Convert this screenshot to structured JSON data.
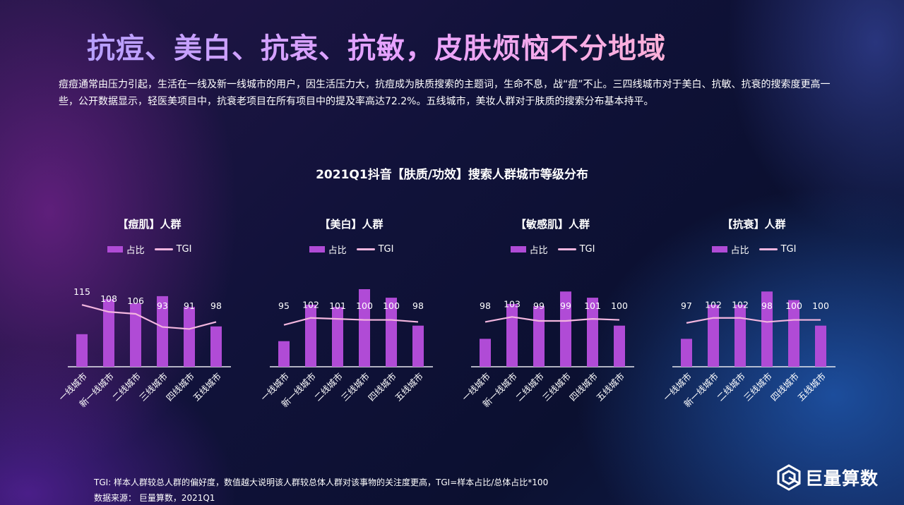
{
  "page": {
    "title": "抗痘、美白、抗衰、抗敏，皮肤烦恼不分地域",
    "intro": "痘痘通常由压力引起，生活在一线及新一线城市的用户，因生活压力大，抗痘成为肤质搜索的主题词，生命不息，战“痘”不止。三四线城市对于美白、抗敏、抗衰的搜索度更高一些，公开数据显示，轻医美项目中，抗衰老项目在所有项目中的提及率高达72.2%。五线城市，美妆人群对于肤质的搜索分布基本持平。",
    "chart_title": "2021Q1抖音【肤质/功效】搜索人群城市等级分布",
    "footer_note": "TGI: 样本人群较总人群的偏好度，数值越大说明该人群较总体人群对该事物的关注度更高，TGI=样本占比/总体占比*100",
    "footer_source": "数据来源： 巨量算数，2021Q1",
    "brand": "巨量算数"
  },
  "legend": {
    "bar": "占比",
    "line": "TGI"
  },
  "colors": {
    "bar": "#b04bd6",
    "line": "#f3b6df",
    "axis": "#e8e8f0"
  },
  "chart_data": [
    {
      "type": "bar",
      "title": "【痘肌】人群",
      "categories": [
        "一线城市",
        "新一线城市",
        "二线城市",
        "三线城市",
        "四线城市",
        "五线城市"
      ],
      "series": [
        {
          "name": "占比",
          "type": "bar",
          "values": [
            0.42,
            0.87,
            0.82,
            0.91,
            0.77,
            0.52
          ]
        },
        {
          "name": "TGI",
          "type": "line",
          "values": [
            115,
            108,
            106,
            93,
            91,
            98
          ]
        }
      ]
    },
    {
      "type": "bar",
      "title": "【美白】人群",
      "categories": [
        "一线城市",
        "新一线城市",
        "二线城市",
        "三线城市",
        "四线城市",
        "五线城市"
      ],
      "series": [
        {
          "name": "占比",
          "type": "bar",
          "values": [
            0.33,
            0.8,
            0.77,
            1.0,
            0.89,
            0.53
          ]
        },
        {
          "name": "TGI",
          "type": "line",
          "values": [
            95,
            102,
            101,
            100,
            100,
            98
          ]
        }
      ]
    },
    {
      "type": "bar",
      "title": "【敏感肌】人群",
      "categories": [
        "一线城市",
        "新一线城市",
        "二线城市",
        "三线城市",
        "四线城市",
        "五线城市"
      ],
      "series": [
        {
          "name": "占比",
          "type": "bar",
          "values": [
            0.36,
            0.81,
            0.78,
            0.97,
            0.89,
            0.53
          ]
        },
        {
          "name": "TGI",
          "type": "line",
          "values": [
            98,
            103,
            99,
            99,
            101,
            100
          ]
        }
      ]
    },
    {
      "type": "bar",
      "title": "【抗衰】人群",
      "categories": [
        "一线城市",
        "新一线城市",
        "二线城市",
        "三线城市",
        "四线城市",
        "五线城市"
      ],
      "series": [
        {
          "name": "占比",
          "type": "bar",
          "values": [
            0.36,
            0.8,
            0.8,
            0.97,
            0.86,
            0.53
          ]
        },
        {
          "name": "TGI",
          "type": "line",
          "values": [
            97,
            102,
            102,
            98,
            100,
            100
          ]
        }
      ]
    }
  ]
}
